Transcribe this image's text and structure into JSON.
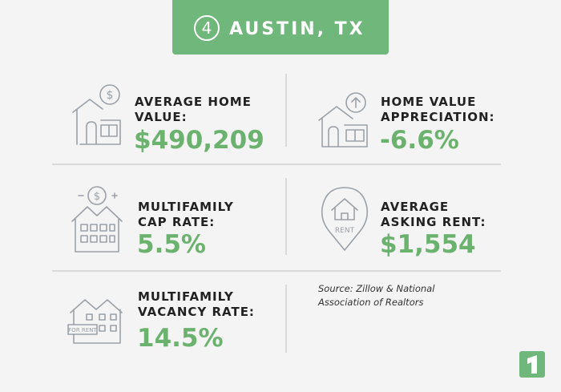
{
  "header": {
    "number": "4",
    "title": "AUSTIN, TX"
  },
  "stats": [
    {
      "label_lines": [
        "AVERAGE HOME",
        "VALUE:"
      ],
      "value": "$490,209"
    },
    {
      "label_lines": [
        "HOME VALUE",
        "APPRECIATION:"
      ],
      "value": "-6.6%"
    },
    {
      "label_lines": [
        "MULTIFAMILY",
        "CAP RATE:"
      ],
      "value": "5.5%"
    },
    {
      "label_lines": [
        "AVERAGE",
        "ASKING RENT:"
      ],
      "value": "$1,554"
    },
    {
      "label_lines": [
        "MULTIFAMILY",
        "VACANCY RATE:"
      ],
      "value": "14.5%"
    }
  ],
  "icon_labels": [
    "RENT",
    "FOR RENT"
  ],
  "source_lines": [
    "Source: Zillow & National",
    "Association of Realtors"
  ]
}
